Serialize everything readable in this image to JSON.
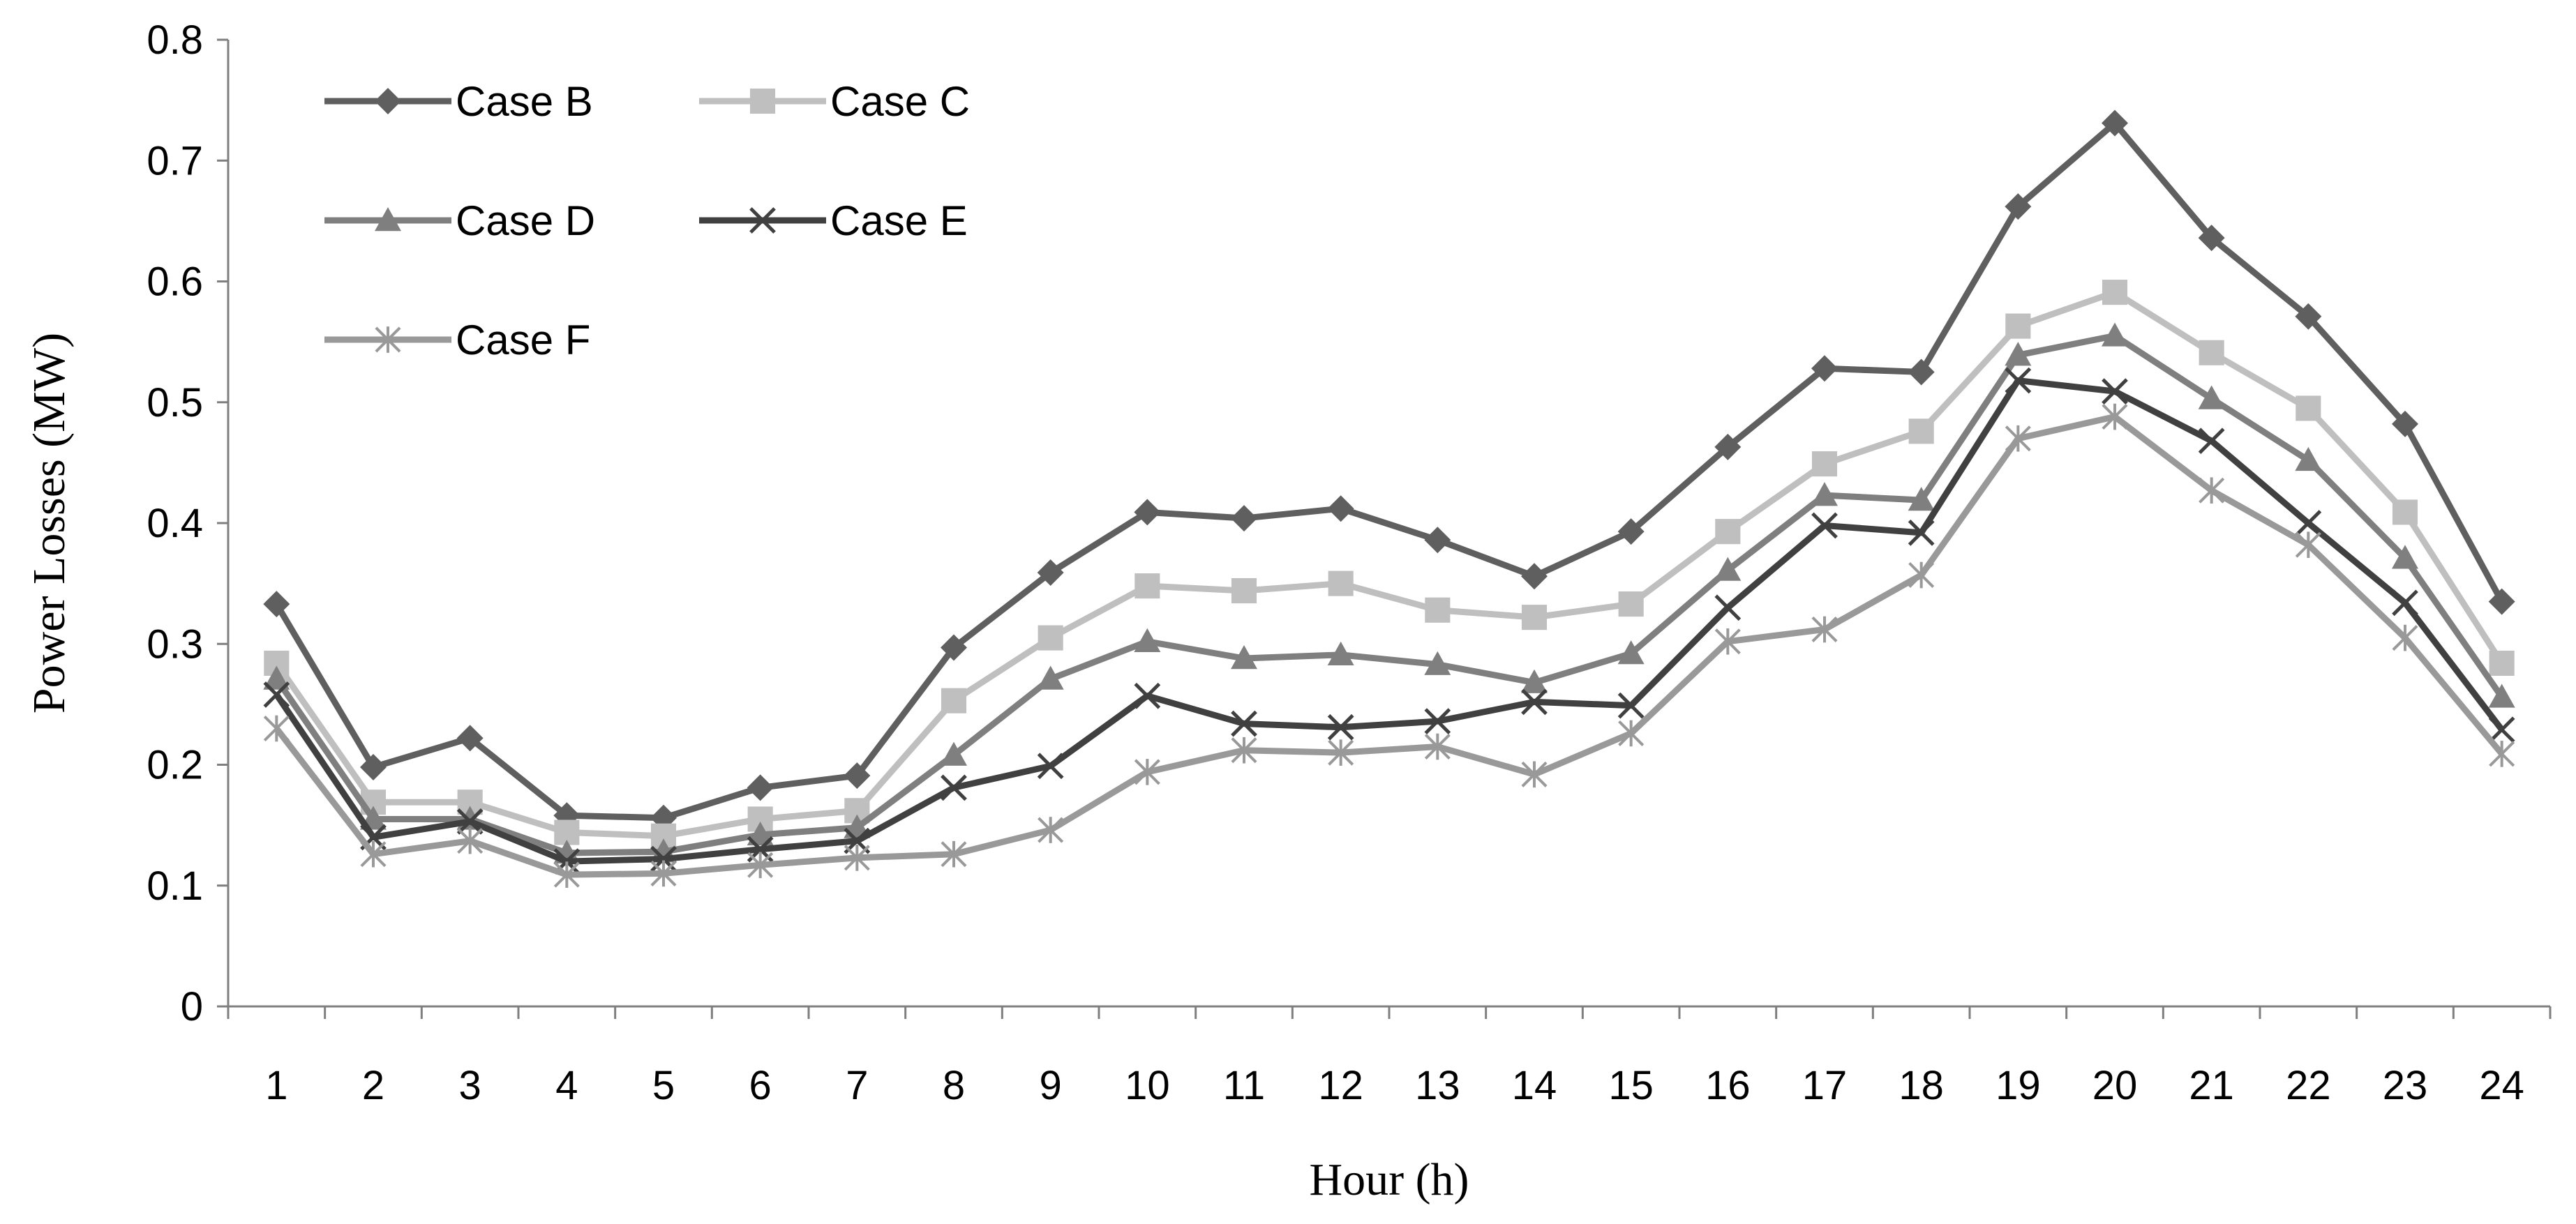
{
  "chart_data": {
    "type": "line",
    "title": "",
    "xlabel": "Hour (h)",
    "ylabel": "Power Losses (MW)",
    "ylim": [
      0,
      0.8
    ],
    "yticks": [
      "0",
      "0.1",
      "0.2",
      "0.3",
      "0.4",
      "0.5",
      "0.6",
      "0.7",
      "0.8"
    ],
    "categories": [
      "1",
      "2",
      "3",
      "4",
      "5",
      "6",
      "7",
      "8",
      "9",
      "10",
      "11",
      "12",
      "13",
      "14",
      "15",
      "16",
      "17",
      "18",
      "19",
      "20",
      "21",
      "22",
      "23",
      "24"
    ],
    "grid": false,
    "legend_position": "top-left",
    "series": [
      {
        "name": "Case B",
        "marker": "diamond",
        "color": "#5f5f5f",
        "values": [
          0.333,
          0.198,
          0.222,
          0.158,
          0.156,
          0.181,
          0.191,
          0.297,
          0.359,
          0.409,
          0.404,
          0.412,
          0.386,
          0.356,
          0.393,
          0.463,
          0.528,
          0.525,
          0.662,
          0.731,
          0.636,
          0.571,
          0.482,
          0.335
        ]
      },
      {
        "name": "Case C",
        "marker": "square",
        "color": "#bfbfbf",
        "values": [
          0.284,
          0.169,
          0.169,
          0.144,
          0.141,
          0.155,
          0.162,
          0.253,
          0.305,
          0.348,
          0.344,
          0.35,
          0.328,
          0.322,
          0.333,
          0.393,
          0.449,
          0.476,
          0.563,
          0.591,
          0.541,
          0.495,
          0.409,
          0.284
        ]
      },
      {
        "name": "Case D",
        "marker": "triangle",
        "color": "#7f7f7f",
        "values": [
          0.271,
          0.155,
          0.155,
          0.127,
          0.128,
          0.142,
          0.148,
          0.208,
          0.271,
          0.302,
          0.288,
          0.291,
          0.283,
          0.268,
          0.292,
          0.361,
          0.423,
          0.419,
          0.539,
          0.555,
          0.503,
          0.452,
          0.371,
          0.256
        ]
      },
      {
        "name": "Case E",
        "marker": "x",
        "color": "#404040",
        "values": [
          0.258,
          0.14,
          0.153,
          0.12,
          0.122,
          0.13,
          0.137,
          0.181,
          0.199,
          0.257,
          0.234,
          0.231,
          0.236,
          0.252,
          0.249,
          0.33,
          0.398,
          0.392,
          0.518,
          0.509,
          0.468,
          0.4,
          0.334,
          0.229
        ]
      },
      {
        "name": "Case F",
        "marker": "asterisk",
        "color": "#999999",
        "values": [
          0.23,
          0.126,
          0.137,
          0.109,
          0.11,
          0.117,
          0.123,
          0.126,
          0.146,
          0.194,
          0.212,
          0.21,
          0.215,
          0.192,
          0.226,
          0.302,
          0.312,
          0.357,
          0.47,
          0.488,
          0.427,
          0.382,
          0.305,
          0.209
        ]
      }
    ]
  }
}
